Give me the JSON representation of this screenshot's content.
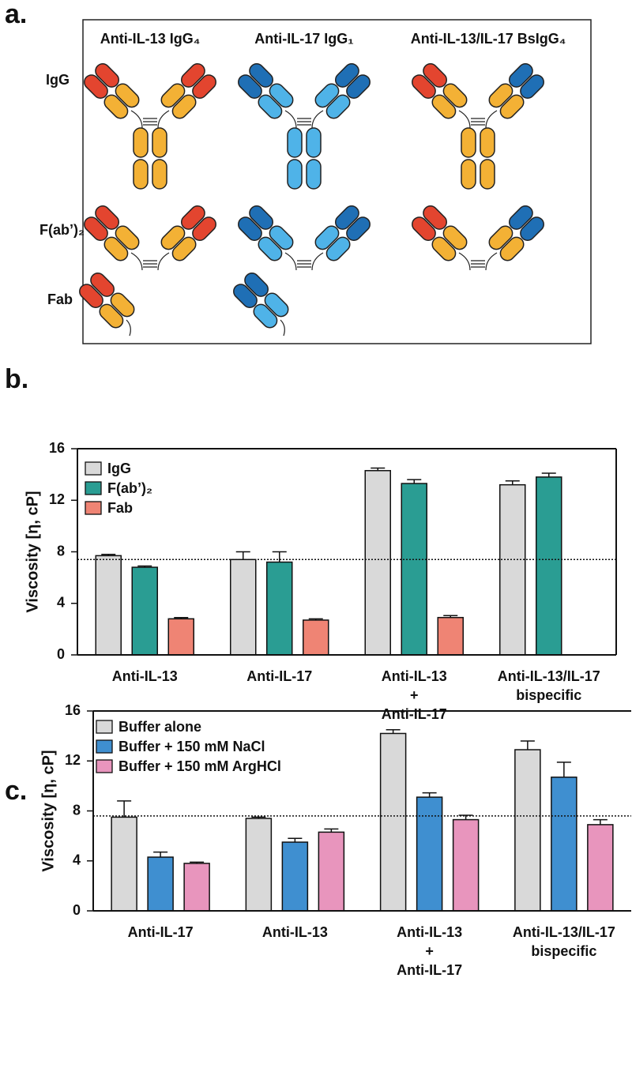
{
  "diagram": {
    "panel_label": "a.",
    "columns": [
      "Anti-IL-13 IgG₄",
      "Anti-IL-17 IgG₁",
      "Anti-IL-13/IL-17 BsIgG₄"
    ],
    "rows": [
      "IgG",
      "F(ab’)₂",
      "Fab"
    ]
  },
  "chart_data": [
    {
      "type": "bar",
      "panel_label": "b.",
      "y_label": "Viscosity [η, cP]",
      "categories": [
        [
          "Anti-IL-13"
        ],
        [
          "Anti-IL-17"
        ],
        [
          "Anti-IL-13",
          "+",
          "Anti-IL-17"
        ],
        [
          "Anti-IL-13/IL-17",
          "bispecific"
        ]
      ],
      "series": [
        {
          "name": "IgG",
          "color": "#d9d9d9",
          "values": [
            7.7,
            7.4,
            14.3,
            13.2
          ],
          "errors": [
            0.1,
            0.6,
            0.2,
            0.3
          ]
        },
        {
          "name": "F(ab’)₂",
          "color": "#2a9d93",
          "values": [
            6.8,
            7.2,
            13.3,
            13.8
          ],
          "errors": [
            0.1,
            0.8,
            0.3,
            0.3
          ]
        },
        {
          "name": "Fab",
          "color": "#ef8474",
          "values": [
            2.8,
            2.7,
            2.9,
            null
          ],
          "errors": [
            0.1,
            0.1,
            0.15,
            null
          ]
        }
      ],
      "ylim": [
        0,
        16
      ],
      "yticks": [
        0,
        4,
        8,
        12,
        16
      ],
      "reference_line": 7.4,
      "legend": "upper left"
    },
    {
      "type": "bar",
      "panel_label": "c.",
      "y_label": "Viscosity [η, cP]",
      "categories": [
        [
          "Anti-IL-17"
        ],
        [
          "Anti-IL-13"
        ],
        [
          "Anti-IL-13",
          "+",
          "Anti-IL-17"
        ],
        [
          "Anti-IL-13/IL-17",
          "bispecific"
        ]
      ],
      "series": [
        {
          "name": "Buffer alone",
          "color": "#d9d9d9",
          "values": [
            7.5,
            7.4,
            14.2,
            12.9
          ],
          "errors": [
            1.3,
            0.1,
            0.3,
            0.7
          ]
        },
        {
          "name": "Buffer + 150 mM NaCl",
          "color": "#3f8fd0",
          "values": [
            4.3,
            5.5,
            9.1,
            10.7
          ],
          "errors": [
            0.4,
            0.3,
            0.35,
            1.2
          ]
        },
        {
          "name": "Buffer + 150 mM ArgHCl",
          "color": "#e895bd",
          "values": [
            3.8,
            6.3,
            7.3,
            6.9
          ],
          "errors": [
            0.1,
            0.25,
            0.35,
            0.4
          ]
        }
      ],
      "ylim": [
        0,
        16
      ],
      "yticks": [
        0,
        4,
        8,
        12,
        16
      ],
      "reference_line": 7.6,
      "legend": "upper left"
    }
  ]
}
